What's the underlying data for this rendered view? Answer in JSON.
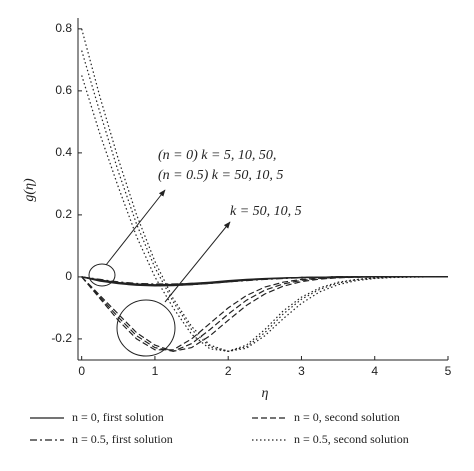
{
  "chart_data": {
    "type": "line",
    "x_label": "η",
    "y_label": "g(η)",
    "xlim": [
      -0.05,
      5
    ],
    "ylim": [
      -0.268,
      0.835
    ],
    "xticks": [
      0,
      1,
      2,
      3,
      4,
      5
    ],
    "yticks": [
      -0.2,
      0,
      0.2,
      0.4,
      0.6,
      0.8
    ],
    "x": [
      0,
      0.25,
      0.5,
      0.75,
      1,
      1.25,
      1.5,
      1.75,
      2,
      2.25,
      2.5,
      2.75,
      3,
      3.25,
      3.5,
      3.75,
      4,
      4.25,
      4.5,
      4.75,
      5
    ],
    "series": [
      {
        "name": "n = 0, first solution",
        "color": "#222222",
        "dash": "none",
        "curves": [
          [
            0,
            -0.01,
            -0.018,
            -0.023,
            -0.025,
            -0.024,
            -0.021,
            -0.017,
            -0.012,
            -0.008,
            -0.005,
            -0.003,
            -0.002,
            -0.001,
            0,
            0,
            0,
            0,
            0,
            0,
            0
          ],
          [
            0,
            -0.012,
            -0.02,
            -0.025,
            -0.027,
            -0.026,
            -0.023,
            -0.019,
            -0.014,
            -0.01,
            -0.006,
            -0.004,
            -0.002,
            -0.001,
            0,
            0,
            0,
            0,
            0,
            0,
            0
          ],
          [
            0,
            -0.014,
            -0.022,
            -0.027,
            -0.029,
            -0.028,
            -0.025,
            -0.021,
            -0.016,
            -0.011,
            -0.007,
            -0.004,
            -0.002,
            -0.001,
            0,
            0,
            0,
            0,
            0,
            0,
            0
          ]
        ]
      },
      {
        "name": "n = 0, second solution",
        "color": "#222222",
        "dash": "6,3",
        "curves": [
          [
            0,
            -0.07,
            -0.14,
            -0.2,
            -0.235,
            -0.235,
            -0.2,
            -0.15,
            -0.1,
            -0.06,
            -0.033,
            -0.017,
            -0.008,
            -0.004,
            -0.002,
            -0.001,
            0,
            0,
            0,
            0,
            0
          ],
          [
            0,
            -0.065,
            -0.13,
            -0.19,
            -0.228,
            -0.24,
            -0.215,
            -0.17,
            -0.12,
            -0.075,
            -0.043,
            -0.023,
            -0.011,
            -0.005,
            -0.002,
            -0.001,
            0,
            0,
            0,
            0,
            0
          ],
          [
            0,
            -0.06,
            -0.12,
            -0.18,
            -0.22,
            -0.24,
            -0.228,
            -0.19,
            -0.14,
            -0.092,
            -0.055,
            -0.03,
            -0.015,
            -0.007,
            -0.003,
            -0.001,
            0,
            0,
            0,
            0,
            0
          ]
        ]
      },
      {
        "name": "n = 0.5, first solution",
        "color": "#222222",
        "dash": "7,3,2,3",
        "curves": [
          [
            0,
            -0.008,
            -0.016,
            -0.021,
            -0.023,
            -0.023,
            -0.021,
            -0.018,
            -0.014,
            -0.01,
            -0.007,
            -0.004,
            -0.002,
            -0.001,
            0,
            0,
            0,
            0,
            0,
            0,
            0
          ],
          [
            0,
            -0.01,
            -0.018,
            -0.023,
            -0.025,
            -0.025,
            -0.023,
            -0.02,
            -0.015,
            -0.011,
            -0.007,
            -0.004,
            -0.002,
            -0.001,
            0,
            0,
            0,
            0,
            0,
            0,
            0
          ],
          [
            0,
            -0.012,
            -0.02,
            -0.025,
            -0.027,
            -0.027,
            -0.025,
            -0.021,
            -0.016,
            -0.012,
            -0.008,
            -0.005,
            -0.003,
            -0.001,
            0,
            0,
            0,
            0,
            0,
            0,
            0
          ]
        ]
      },
      {
        "name": "n = 0.5, second solution",
        "color": "#222222",
        "dash": "1.5,2.5",
        "curves": [
          [
            0.8,
            0.58,
            0.38,
            0.2,
            0.05,
            -0.07,
            -0.16,
            -0.22,
            -0.24,
            -0.22,
            -0.17,
            -0.11,
            -0.065,
            -0.035,
            -0.017,
            -0.008,
            -0.003,
            -0.001,
            0,
            0,
            0
          ],
          [
            0.73,
            0.53,
            0.34,
            0.17,
            0.03,
            -0.08,
            -0.17,
            -0.225,
            -0.24,
            -0.225,
            -0.18,
            -0.12,
            -0.072,
            -0.04,
            -0.02,
            -0.009,
            -0.004,
            -0.001,
            0,
            0,
            0
          ],
          [
            0.65,
            0.46,
            0.29,
            0.13,
            0.0,
            -0.1,
            -0.185,
            -0.232,
            -0.24,
            -0.23,
            -0.19,
            -0.135,
            -0.085,
            -0.048,
            -0.025,
            -0.012,
            -0.005,
            -0.002,
            -0.001,
            0,
            0
          ]
        ]
      }
    ],
    "annotations": [
      "(n = 0) k = 5, 10, 50,",
      "(n = 0.5) k = 50, 10, 5",
      "k = 50, 10, 5"
    ]
  }
}
